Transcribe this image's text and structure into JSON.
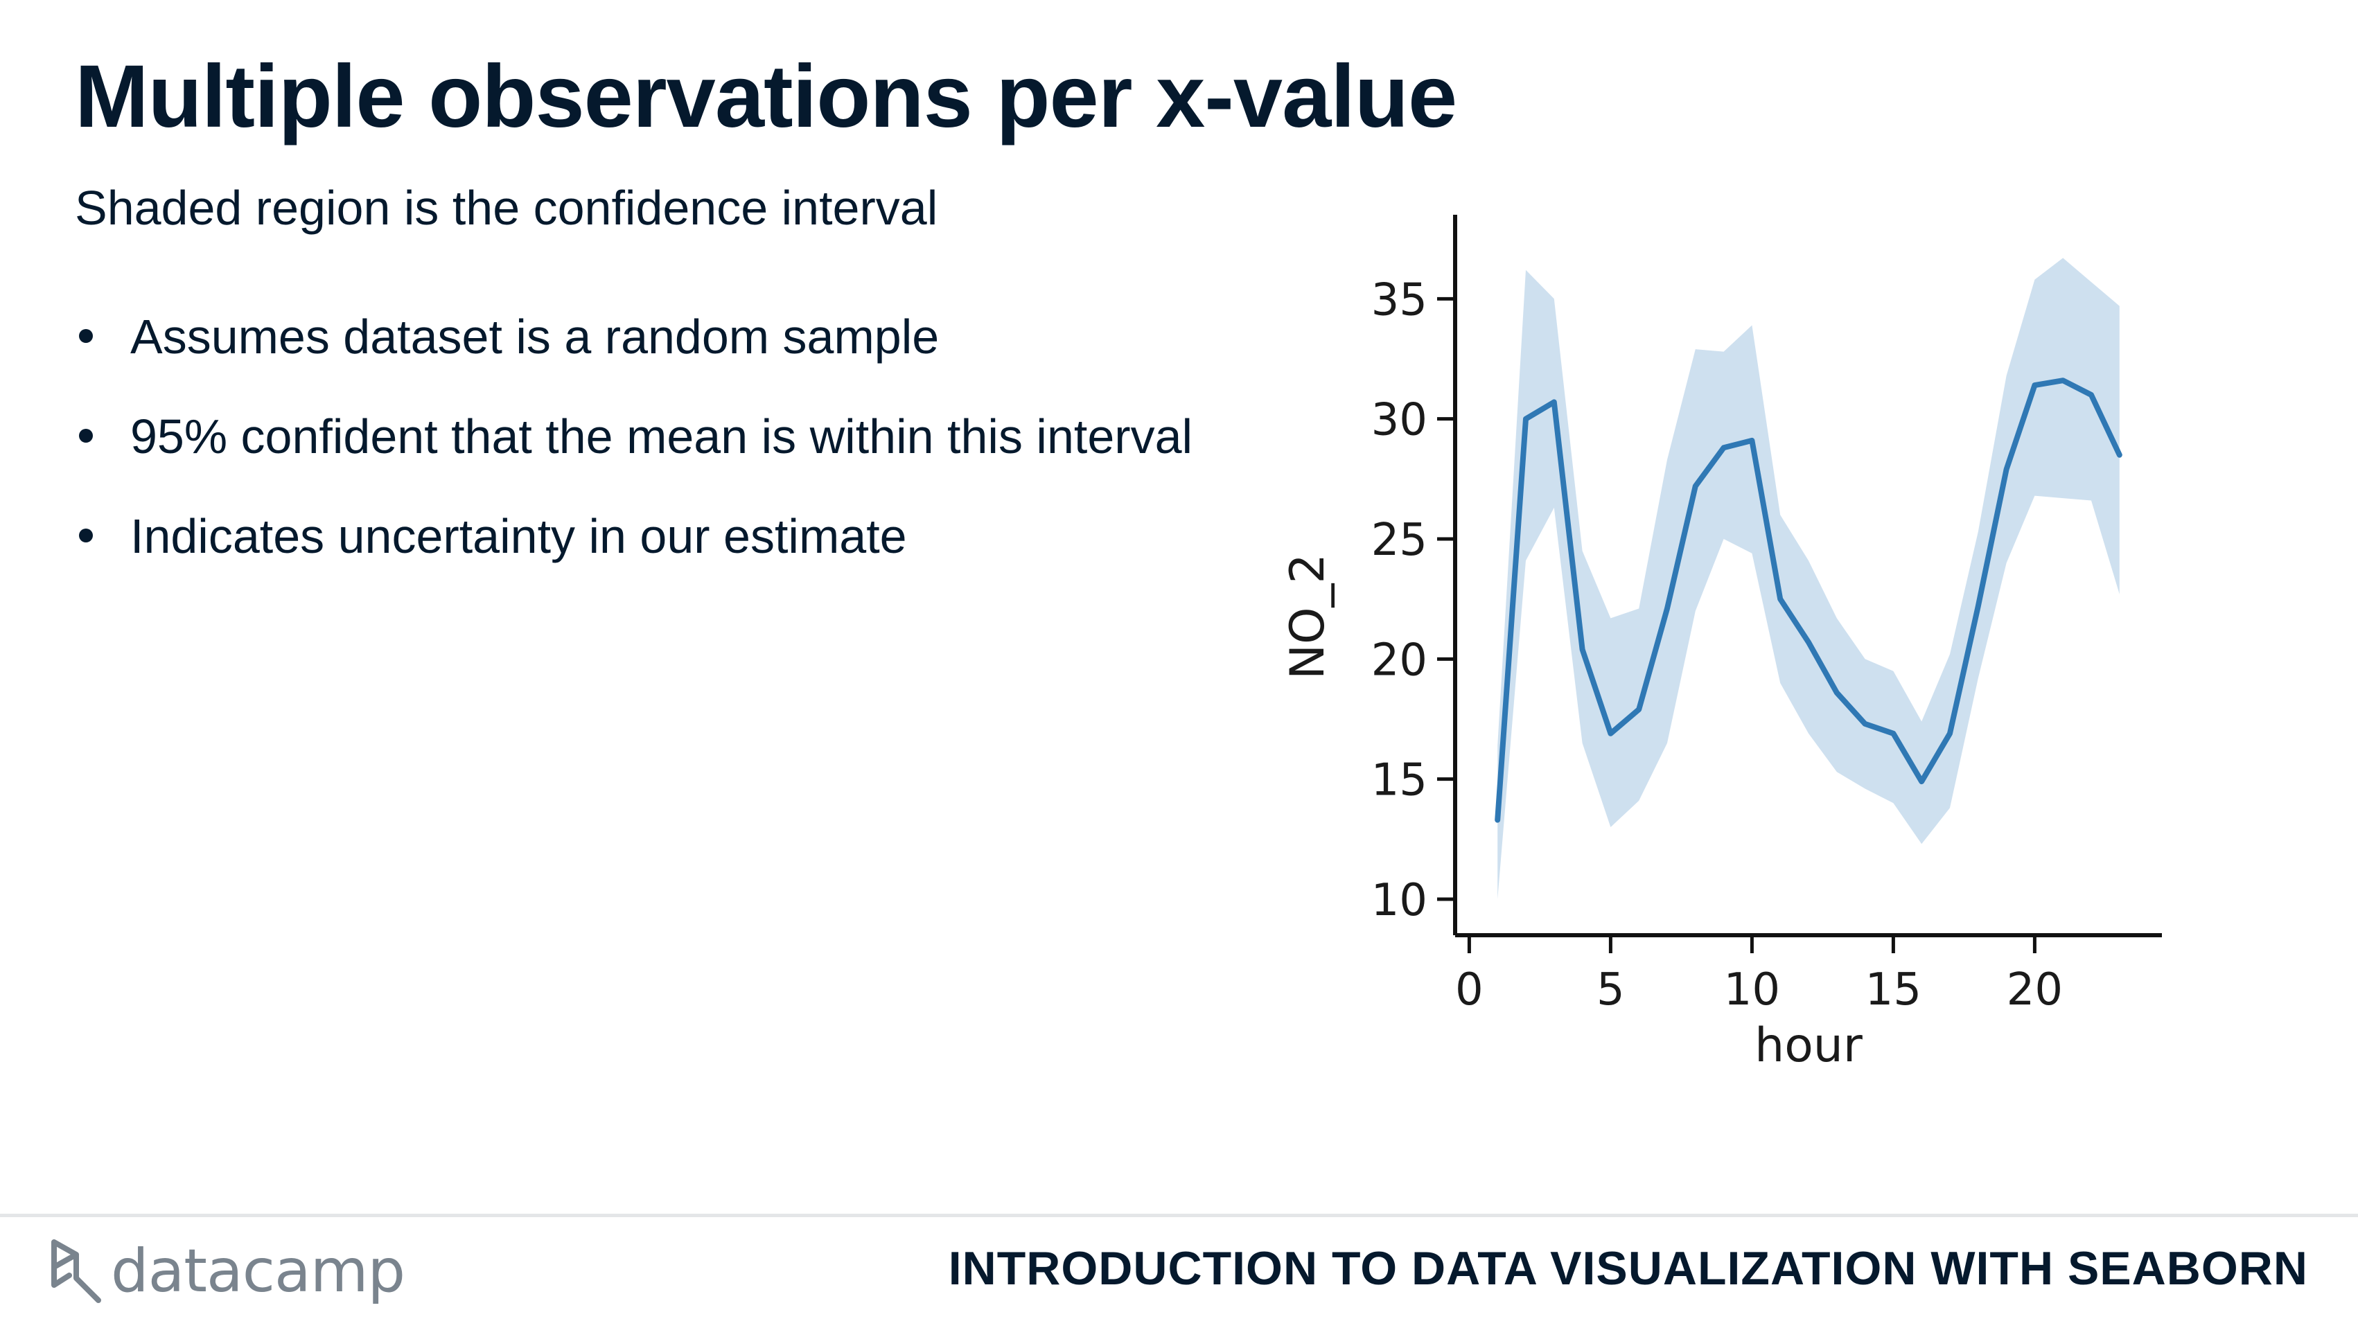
{
  "slide": {
    "title": "Multiple observations per x-value",
    "subtitle": "Shaded region is the confidence interval",
    "bullets": [
      "Assumes dataset is a random sample",
      "95% confident that the mean is within this interval",
      "Indicates uncertainty in our estimate"
    ]
  },
  "footer": {
    "brand": "datacamp",
    "course": "INTRODUCTION TO DATA VISUALIZATION WITH SEABORN"
  },
  "colors": {
    "line": "#2f78b4",
    "band": "#c6dbec",
    "text": "#05192d"
  },
  "chart_data": {
    "type": "line",
    "title": "",
    "xlabel": "hour",
    "ylabel": "NO_2",
    "xlim": [
      -0.5,
      24.5
    ],
    "ylim": [
      8.5,
      38.5
    ],
    "xticks": [
      0,
      5,
      10,
      15,
      20
    ],
    "yticks": [
      10,
      15,
      20,
      25,
      30,
      35
    ],
    "grid": false,
    "legend": "none",
    "series": [
      {
        "x": [
          1,
          2,
          3,
          4,
          5,
          6,
          7,
          8,
          9,
          10,
          11,
          12,
          13,
          14,
          15,
          16,
          17,
          18,
          19,
          20,
          21,
          22,
          23
        ],
        "y": [
          13.3,
          30.0,
          30.7,
          20.4,
          16.9,
          17.9,
          22.1,
          27.2,
          28.8,
          29.1,
          22.5,
          20.7,
          18.6,
          17.3,
          16.9,
          14.9,
          16.9,
          22.2,
          27.9,
          31.4,
          31.6,
          31.0,
          28.5
        ],
        "ci_lower": [
          10.0,
          24.1,
          26.3,
          16.5,
          13.0,
          14.1,
          16.5,
          22.0,
          25.0,
          24.4,
          19.0,
          16.9,
          15.3,
          14.6,
          14.0,
          12.3,
          13.8,
          19.2,
          24.0,
          26.8,
          26.7,
          26.6,
          22.7
        ],
        "ci_upper": [
          16.4,
          36.2,
          35.0,
          24.5,
          21.7,
          22.1,
          28.3,
          32.9,
          32.8,
          33.9,
          26.0,
          24.1,
          21.7,
          20.0,
          19.5,
          17.4,
          20.2,
          25.3,
          31.8,
          35.8,
          36.7,
          35.7,
          34.7
        ]
      }
    ]
  }
}
